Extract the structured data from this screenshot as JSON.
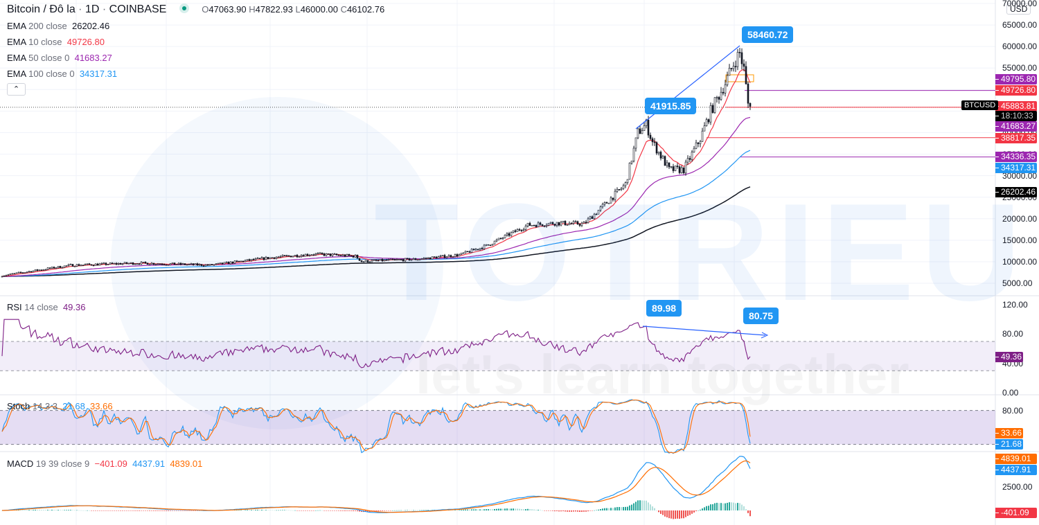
{
  "header": {
    "symbol": "Bitcoin / Đô la",
    "interval": "1D",
    "exchange": "COINBASE",
    "open": "O47063.90",
    "high": "H47822.93",
    "low": "L46000.00",
    "close": "C46102.76",
    "o_label": "O",
    "h_label": "H",
    "l_label": "L",
    "c_label": "C",
    "o": "47063.90",
    "h": "47822.93",
    "l": "46000.00",
    "c": "46102.76"
  },
  "indicators": [
    {
      "name": "EMA",
      "params": "200 close",
      "value": "26202.46",
      "color": "#131722"
    },
    {
      "name": "EMA",
      "params": "10 close",
      "value": "49726.80",
      "color": "#f23645"
    },
    {
      "name": "EMA",
      "params": "50 close 0",
      "value": "41683.27",
      "color": "#9c27b0"
    },
    {
      "name": "EMA",
      "params": "100 close 0",
      "value": "34317.31",
      "color": "#2196f3"
    }
  ],
  "collapse_icon": "chevron-up-icon",
  "currency": "USD",
  "symbol_tag": "BTCUSD",
  "countdown": "18:10:33",
  "price_axis": [
    "70000.00",
    "65000.00",
    "60000.00",
    "55000.00",
    "50000.00",
    "45000.00",
    "40000.00",
    "35000.00",
    "30000.00",
    "25000.00",
    "20000.00",
    "15000.00",
    "10000.00",
    "5000.00"
  ],
  "price_tags": [
    {
      "value": "49795.80",
      "color": "#9c27b0"
    },
    {
      "value": "49726.80",
      "color": "#f23645"
    },
    {
      "value": "45883.81",
      "color": "#f23645"
    },
    {
      "value": "41683.27",
      "color": "#9c27b0"
    },
    {
      "value": "38817.35",
      "color": "#f23645"
    },
    {
      "value": "34336.35",
      "color": "#9c27b0"
    },
    {
      "value": "34317.31",
      "color": "#2196f3"
    },
    {
      "value": "26202.46",
      "color": "#000000"
    }
  ],
  "callouts": {
    "high_1": "41915.85",
    "high_2": "58460.72",
    "rsi_1": "89.98",
    "rsi_2": "80.75"
  },
  "rsi": {
    "label": "RSI",
    "params": "14 close",
    "value": "49.36",
    "axis": [
      "120.00",
      "80.00",
      "40.00",
      "0.00"
    ],
    "color": "#7e1f86"
  },
  "stoch": {
    "label": "Stoch",
    "params": "14 3 3",
    "k": "21.68",
    "d": "33.66",
    "axis": [
      "80.00"
    ],
    "k_color": "#2196f3",
    "d_color": "#ff6d00"
  },
  "macd": {
    "label": "MACD",
    "params": "19 39 close 9",
    "hist": "−401.09",
    "macd": "4437.91",
    "signal": "4839.01",
    "axis": [
      "2500.00"
    ],
    "hist_tag": "-401.09"
  },
  "watermark": {
    "brand": "TOTRIEU",
    "slogan": "let's learn together"
  },
  "chart_data": {
    "type": "candlestick",
    "title": "Bitcoin / Đô la · 1D · COINBASE",
    "ylim": [
      3000,
      70000
    ],
    "price_path": [
      [
        0,
        6800
      ],
      [
        33,
        9200
      ],
      [
        66,
        9700
      ],
      [
        100,
        9200
      ],
      [
        130,
        11000
      ],
      [
        150,
        11800
      ],
      [
        170,
        11300
      ],
      [
        173,
        10100
      ],
      [
        200,
        10600
      ],
      [
        220,
        11600
      ],
      [
        233,
        13700
      ],
      [
        253,
        18500
      ],
      [
        266,
        19000
      ],
      [
        280,
        18800
      ],
      [
        290,
        23300
      ],
      [
        300,
        28000
      ],
      [
        306,
        40000
      ],
      [
        310,
        41915.85
      ],
      [
        313,
        37800
      ],
      [
        321,
        31400
      ],
      [
        328,
        31400
      ],
      [
        336,
        38600
      ],
      [
        341,
        45000
      ],
      [
        348,
        51500
      ],
      [
        353,
        57000
      ],
      [
        355,
        58460.72
      ],
      [
        357,
        54700
      ],
      [
        359,
        46700
      ],
      [
        360,
        46102.76
      ]
    ],
    "horizontal_levels": [
      49795.8,
      45883.81,
      38817.35,
      34336.35
    ],
    "ema": {
      "ema10": 49726.8,
      "ema50": 41683.27,
      "ema100": 34317.31,
      "ema200": 26202.46
    },
    "rsi": {
      "period": 14,
      "last": 49.36,
      "peak_1": 89.98,
      "peak_2": 80.75,
      "bands": [
        30,
        70
      ],
      "ylim": [
        0,
        120
      ]
    },
    "stoch": {
      "params": [
        14,
        3,
        3
      ],
      "k": 21.68,
      "d": 33.66,
      "bands": [
        20,
        80
      ]
    },
    "macd": {
      "params": [
        19,
        39,
        9
      ],
      "histogram": -401.09,
      "macd": 4437.91,
      "signal": 4839.01
    }
  }
}
